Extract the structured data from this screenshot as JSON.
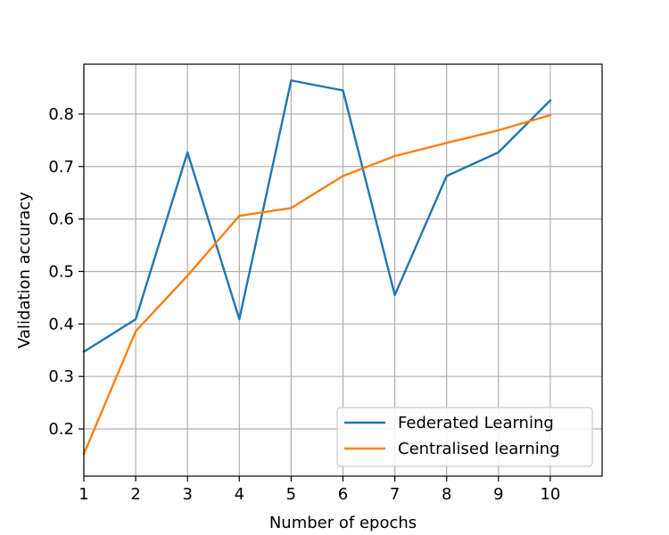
{
  "chart_data": {
    "type": "line",
    "xlabel": "Number of epochs",
    "ylabel": "Validation accuracy",
    "xlim": [
      1,
      11
    ],
    "ylim": [
      0.11,
      0.895
    ],
    "x": [
      1,
      2,
      3,
      4,
      5,
      6,
      7,
      8,
      9,
      10
    ],
    "xticks": [
      1,
      2,
      3,
      4,
      5,
      6,
      7,
      8,
      9,
      10
    ],
    "xtick_labels": [
      "1",
      "2",
      "3",
      "4",
      "5",
      "6",
      "7",
      "8",
      "9",
      "10"
    ],
    "yticks": [
      0.2,
      0.3,
      0.4,
      0.5,
      0.6,
      0.7,
      0.8
    ],
    "ytick_labels": [
      "0.2",
      "0.3",
      "0.4",
      "0.5",
      "0.6",
      "0.7",
      "0.8"
    ],
    "grid": true,
    "legend_position": "lower-right",
    "series": [
      {
        "name": "Federated Learning",
        "color": "#1f77b4",
        "values": [
          0.347,
          0.409,
          0.727,
          0.409,
          0.864,
          0.845,
          0.455,
          0.682,
          0.727,
          0.826
        ]
      },
      {
        "name": "Centralised learning",
        "color": "#ff7f0e",
        "values": [
          0.152,
          0.386,
          0.492,
          0.606,
          0.621,
          0.682,
          0.72,
          0.745,
          0.769,
          0.798
        ]
      }
    ]
  }
}
